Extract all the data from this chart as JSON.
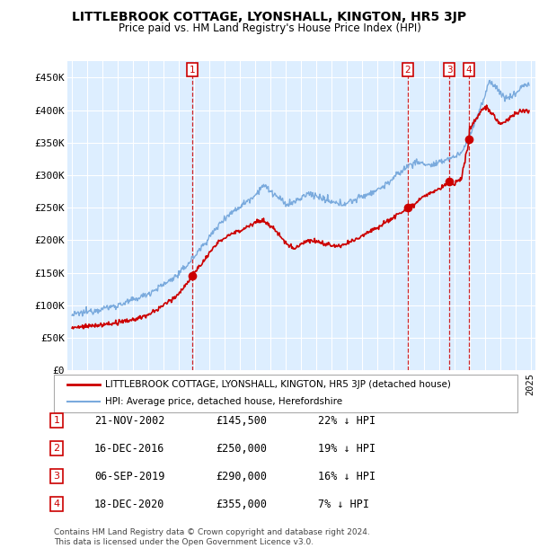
{
  "title": "LITTLEBROOK COTTAGE, LYONSHALL, KINGTON, HR5 3JP",
  "subtitle": "Price paid vs. HM Land Registry's House Price Index (HPI)",
  "ylabel_ticks": [
    "£0",
    "£50K",
    "£100K",
    "£150K",
    "£200K",
    "£250K",
    "£300K",
    "£350K",
    "£400K",
    "£450K"
  ],
  "ytick_values": [
    0,
    50000,
    100000,
    150000,
    200000,
    250000,
    300000,
    350000,
    400000,
    450000
  ],
  "ylim": [
    0,
    475000
  ],
  "xlim_start": 1994.7,
  "xlim_end": 2025.3,
  "plot_bg_color": "#ddeeff",
  "grid_color": "#ffffff",
  "transactions": [
    {
      "num": 1,
      "date": "21-NOV-2002",
      "price": 145500,
      "year": 2002.88,
      "pct": "22%",
      "label": "1"
    },
    {
      "num": 2,
      "date": "16-DEC-2016",
      "price": 250000,
      "year": 2016.96,
      "pct": "19%",
      "label": "2"
    },
    {
      "num": 3,
      "date": "06-SEP-2019",
      "price": 290000,
      "year": 2019.67,
      "pct": "16%",
      "label": "3"
    },
    {
      "num": 4,
      "date": "18-DEC-2020",
      "price": 355000,
      "year": 2020.96,
      "pct": "7%",
      "label": "4"
    }
  ],
  "legend_entries": [
    {
      "label": "LITTLEBROOK COTTAGE, LYONSHALL, KINGTON, HR5 3JP (detached house)",
      "color": "#cc0000",
      "lw": 2
    },
    {
      "label": "HPI: Average price, detached house, Herefordshire",
      "color": "#6699cc",
      "lw": 1.5
    }
  ],
  "table_rows": [
    {
      "num": "1",
      "date": "21-NOV-2002",
      "price": "£145,500",
      "pct": "22% ↓ HPI"
    },
    {
      "num": "2",
      "date": "16-DEC-2016",
      "price": "£250,000",
      "pct": "19% ↓ HPI"
    },
    {
      "num": "3",
      "date": "06-SEP-2019",
      "price": "£290,000",
      "pct": "16% ↓ HPI"
    },
    {
      "num": "4",
      "date": "18-DEC-2020",
      "price": "£355,000",
      "pct": "7% ↓ HPI"
    }
  ],
  "footnote": "Contains HM Land Registry data © Crown copyright and database right 2024.\nThis data is licensed under the Open Government Licence v3.0.",
  "hpi_color": "#7aaadd",
  "price_color": "#cc0000",
  "vline_color": "#cc0000",
  "hpi_waypoints": [
    [
      1995.0,
      85000
    ],
    [
      1996.0,
      90000
    ],
    [
      1997.0,
      95000
    ],
    [
      1998.0,
      100000
    ],
    [
      1999.0,
      108000
    ],
    [
      2000.0,
      118000
    ],
    [
      2001.0,
      132000
    ],
    [
      2002.0,
      148000
    ],
    [
      2003.0,
      175000
    ],
    [
      2004.0,
      205000
    ],
    [
      2004.5,
      220000
    ],
    [
      2005.0,
      235000
    ],
    [
      2006.0,
      252000
    ],
    [
      2007.0,
      270000
    ],
    [
      2007.5,
      285000
    ],
    [
      2008.0,
      275000
    ],
    [
      2008.5,
      265000
    ],
    [
      2009.0,
      255000
    ],
    [
      2009.5,
      258000
    ],
    [
      2010.0,
      265000
    ],
    [
      2010.5,
      272000
    ],
    [
      2011.0,
      268000
    ],
    [
      2011.5,
      262000
    ],
    [
      2012.0,
      258000
    ],
    [
      2012.5,
      255000
    ],
    [
      2013.0,
      258000
    ],
    [
      2013.5,
      262000
    ],
    [
      2014.0,
      268000
    ],
    [
      2014.5,
      272000
    ],
    [
      2015.0,
      278000
    ],
    [
      2015.5,
      285000
    ],
    [
      2016.0,
      295000
    ],
    [
      2016.5,
      305000
    ],
    [
      2017.0,
      315000
    ],
    [
      2017.5,
      320000
    ],
    [
      2018.0,
      318000
    ],
    [
      2018.5,
      315000
    ],
    [
      2019.0,
      318000
    ],
    [
      2019.5,
      325000
    ],
    [
      2020.0,
      328000
    ],
    [
      2020.5,
      335000
    ],
    [
      2021.0,
      360000
    ],
    [
      2021.5,
      390000
    ],
    [
      2022.0,
      420000
    ],
    [
      2022.3,
      445000
    ],
    [
      2022.8,
      435000
    ],
    [
      2023.0,
      425000
    ],
    [
      2023.5,
      418000
    ],
    [
      2024.0,
      425000
    ],
    [
      2024.5,
      438000
    ],
    [
      2024.9,
      440000
    ]
  ],
  "price_waypoints": [
    [
      1995.0,
      65000
    ],
    [
      1996.0,
      68000
    ],
    [
      1997.0,
      70000
    ],
    [
      1998.0,
      73000
    ],
    [
      1999.0,
      78000
    ],
    [
      2000.0,
      85000
    ],
    [
      2001.0,
      100000
    ],
    [
      2002.0,
      118000
    ],
    [
      2002.88,
      145500
    ],
    [
      2003.5,
      165000
    ],
    [
      2004.0,
      180000
    ],
    [
      2004.5,
      195000
    ],
    [
      2005.0,
      205000
    ],
    [
      2006.0,
      215000
    ],
    [
      2007.0,
      228000
    ],
    [
      2007.5,
      230000
    ],
    [
      2008.0,
      222000
    ],
    [
      2008.5,
      210000
    ],
    [
      2009.0,
      195000
    ],
    [
      2009.5,
      188000
    ],
    [
      2010.0,
      195000
    ],
    [
      2010.5,
      200000
    ],
    [
      2011.0,
      198000
    ],
    [
      2011.5,
      195000
    ],
    [
      2012.0,
      192000
    ],
    [
      2012.5,
      190000
    ],
    [
      2013.0,
      195000
    ],
    [
      2013.5,
      200000
    ],
    [
      2014.0,
      208000
    ],
    [
      2014.5,
      215000
    ],
    [
      2015.0,
      220000
    ],
    [
      2015.5,
      228000
    ],
    [
      2016.0,
      235000
    ],
    [
      2016.5,
      242000
    ],
    [
      2016.96,
      250000
    ],
    [
      2017.5,
      258000
    ],
    [
      2018.0,
      268000
    ],
    [
      2018.5,
      272000
    ],
    [
      2019.0,
      278000
    ],
    [
      2019.67,
      290000
    ],
    [
      2020.0,
      285000
    ],
    [
      2020.5,
      295000
    ],
    [
      2020.96,
      355000
    ],
    [
      2021.0,
      370000
    ],
    [
      2021.5,
      390000
    ],
    [
      2022.0,
      405000
    ],
    [
      2022.3,
      400000
    ],
    [
      2022.8,
      385000
    ],
    [
      2023.0,
      378000
    ],
    [
      2023.5,
      385000
    ],
    [
      2024.0,
      395000
    ],
    [
      2024.5,
      400000
    ],
    [
      2024.9,
      398000
    ]
  ]
}
